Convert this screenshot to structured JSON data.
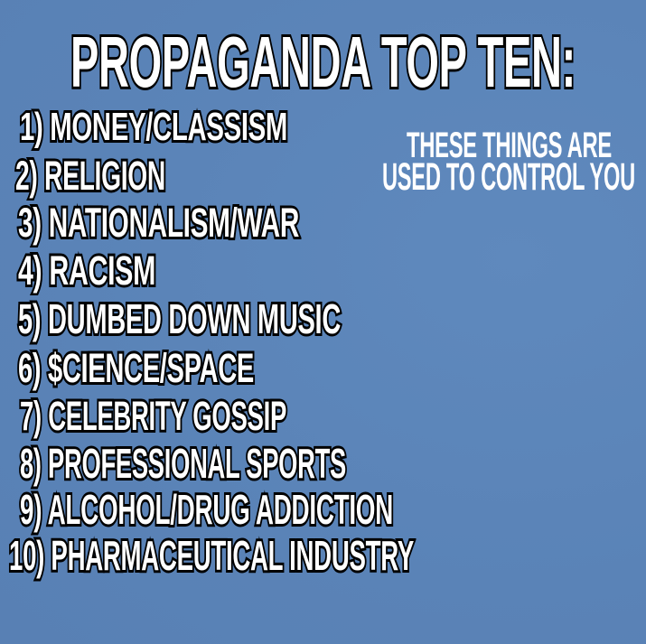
{
  "title": "PROPAGANDA TOP TEN:",
  "items": [
    "1) MONEY/CLASSISM",
    "2) RELIGION",
    "3) NATIONALISM/WAR",
    "4) RACISM",
    "5) DUMBED DOWN MUSIC",
    "6) $CIENCE/SPACE",
    "7) CELEBRITY GOSSIP",
    "8) PROFESSIONAL SPORTS",
    "9) ALCOHOL/DRUG ADDICTION",
    "10) PHARMACEUTICAL INDUSTRY"
  ],
  "side_note": {
    "line1": "THESE THINGS ARE",
    "line2": "USED TO CONTROL YOU"
  },
  "colors": {
    "background": "#5b84b8",
    "text": "#ffffff",
    "outline": "#000000"
  }
}
